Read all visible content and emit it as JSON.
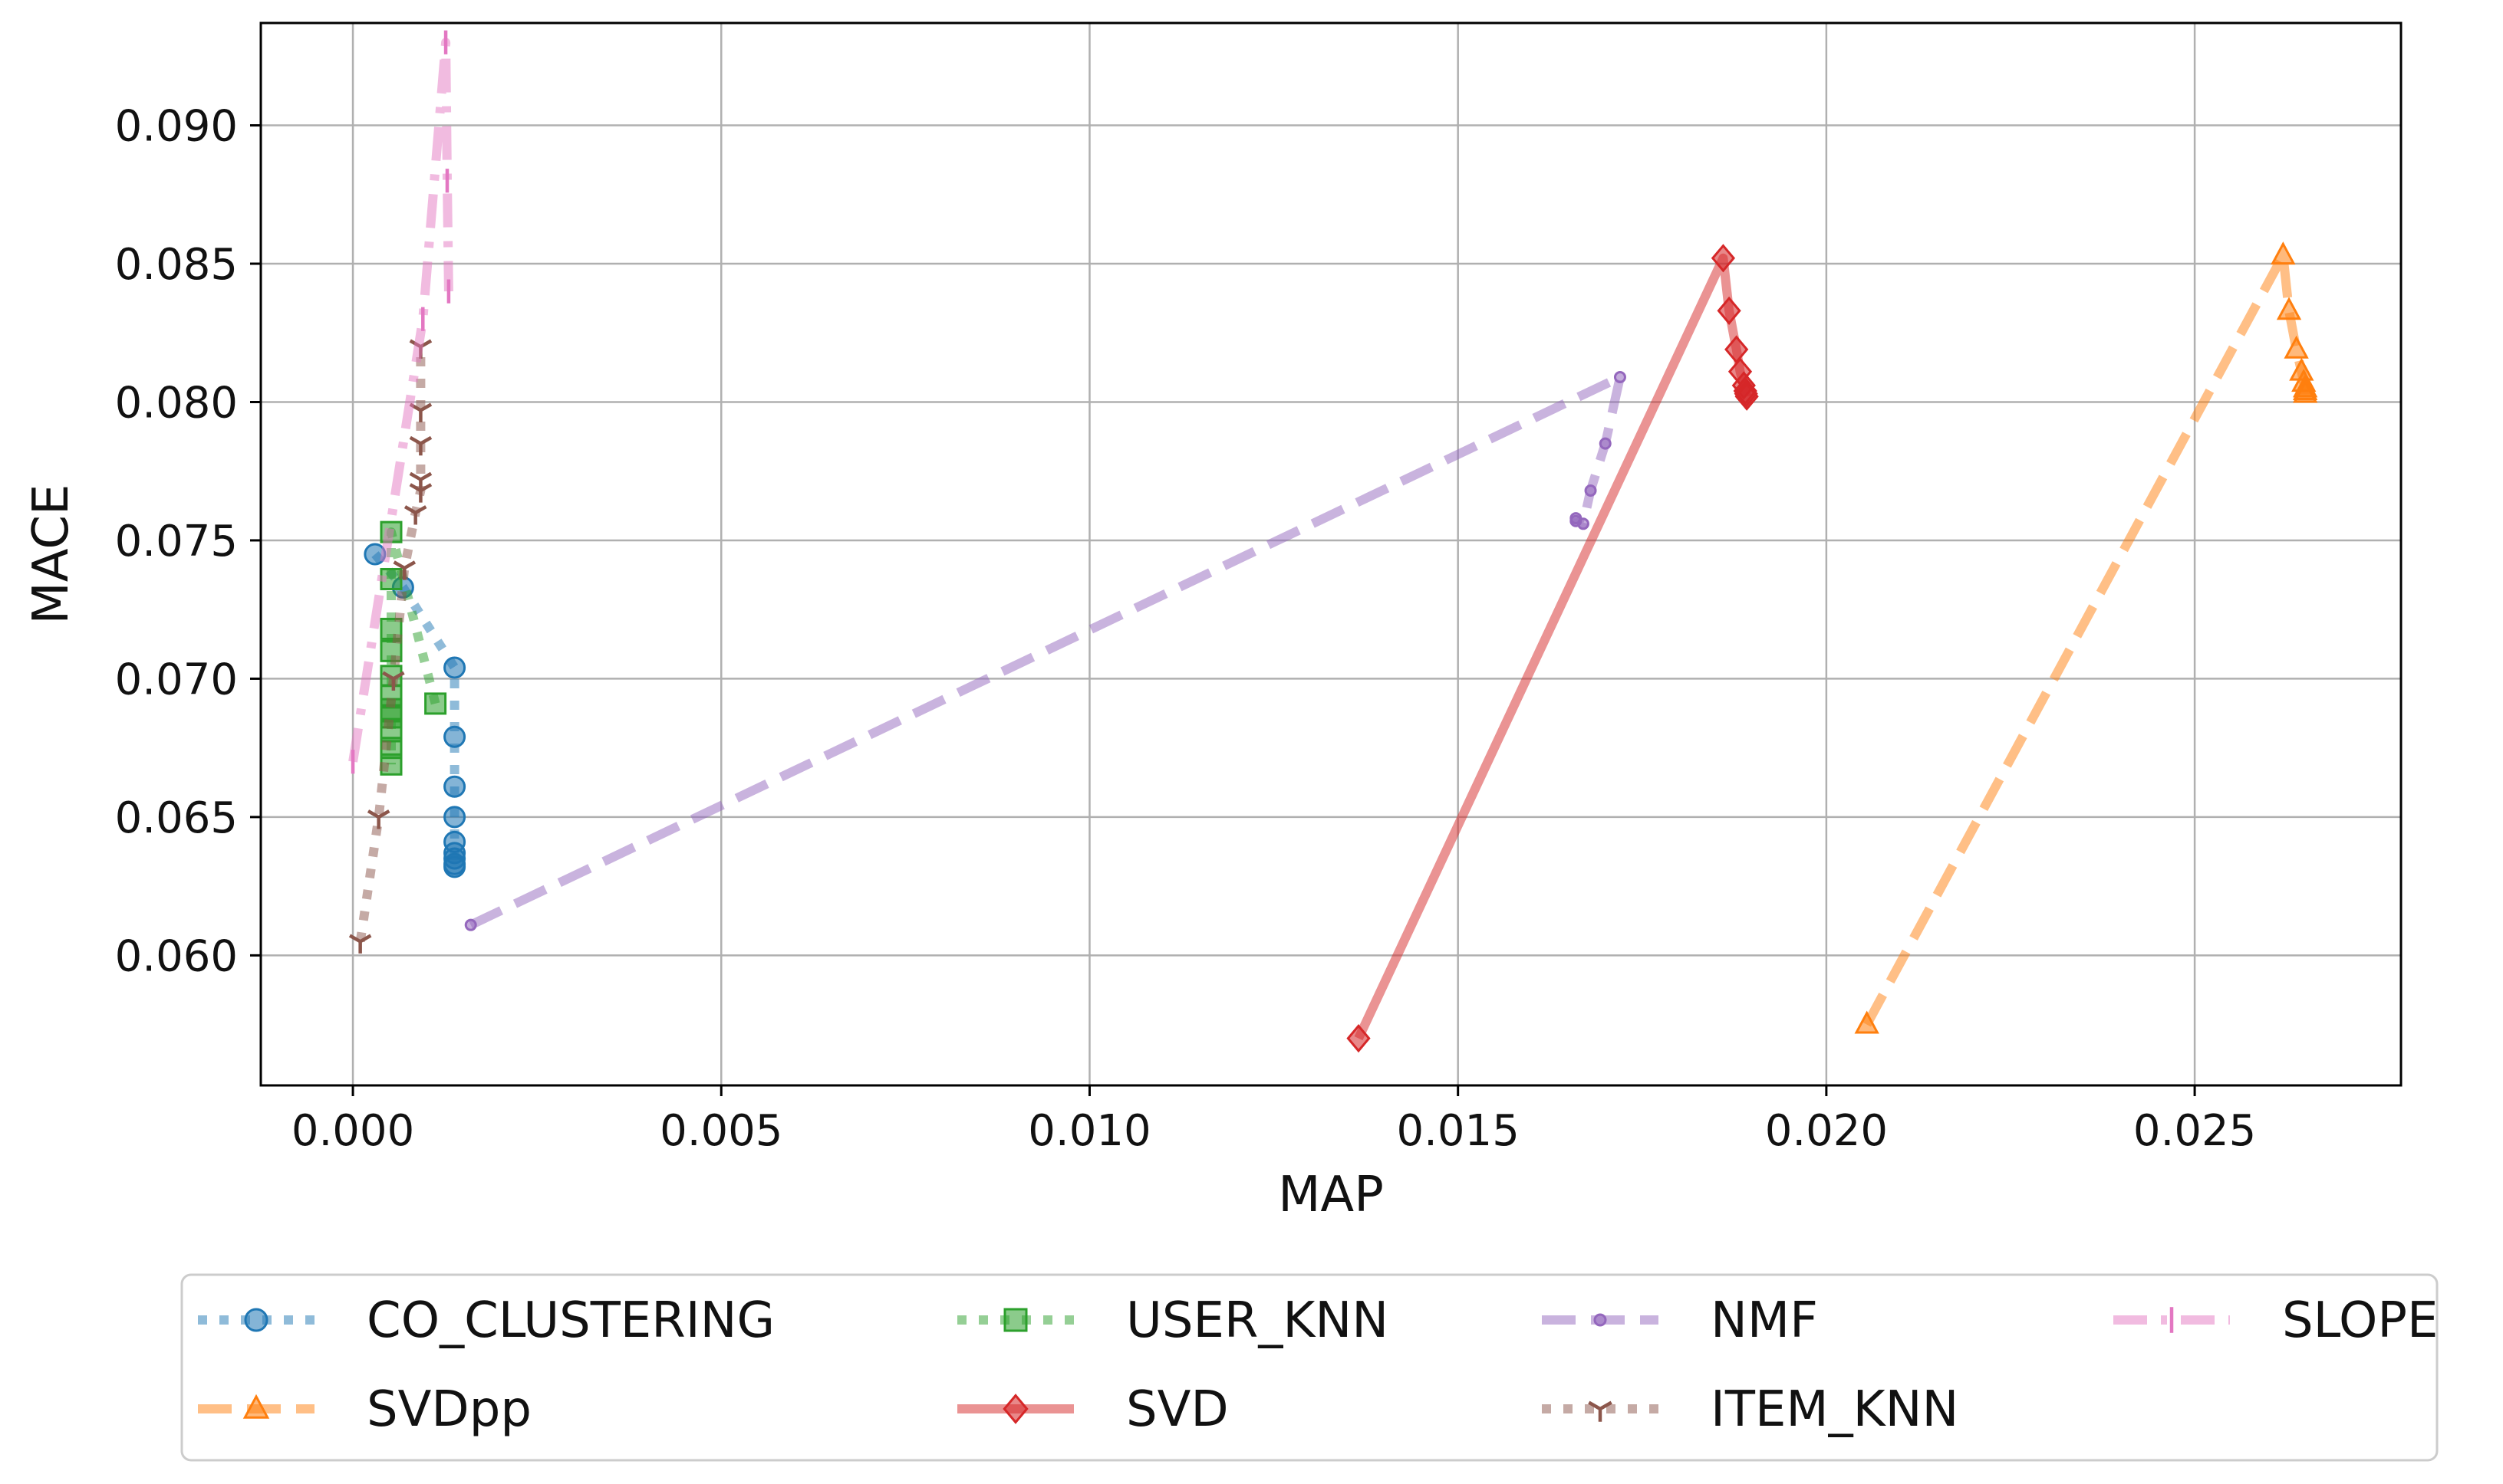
{
  "chart_data": {
    "type": "line",
    "title": "",
    "xlabel": "MAP",
    "ylabel": "MACE",
    "xlim": [
      -0.00125,
      0.0278
    ],
    "ylim": [
      0.0553,
      0.0937
    ],
    "xticks": [
      0.0,
      0.005,
      0.01,
      0.015,
      0.02,
      0.025
    ],
    "xtick_labels": [
      "0.000",
      "0.005",
      "0.010",
      "0.015",
      "0.020",
      "0.025"
    ],
    "yticks": [
      0.06,
      0.065,
      0.07,
      0.075,
      0.08,
      0.085,
      0.09
    ],
    "ytick_labels": [
      "0.060",
      "0.065",
      "0.070",
      "0.075",
      "0.080",
      "0.085",
      "0.090"
    ],
    "grid": true,
    "legend_position": "bottom",
    "series": [
      {
        "name": "CO_CLUSTERING",
        "color": "#1f77b4",
        "marker": "circle",
        "linestyle": "dotted",
        "x": [
          0.0003,
          0.00068,
          0.00138,
          0.00138,
          0.00138,
          0.00138,
          0.00138,
          0.00138,
          0.00138,
          0.00138,
          0.00138
        ],
        "y": [
          0.0745,
          0.0733,
          0.0704,
          0.0679,
          0.0661,
          0.065,
          0.0641,
          0.0637,
          0.0635,
          0.0633,
          0.0632
        ]
      },
      {
        "name": "SVDpp",
        "color": "#ff7f0e",
        "marker": "triangle",
        "linestyle": "dashed",
        "x": [
          0.02055,
          0.0262,
          0.02628,
          0.02638,
          0.02645,
          0.02648,
          0.0265,
          0.0265,
          0.0265
        ],
        "y": [
          0.0575,
          0.0853,
          0.0833,
          0.0819,
          0.0811,
          0.0807,
          0.0805,
          0.0804,
          0.0803
        ]
      },
      {
        "name": "USER_KNN",
        "color": "#2ca02c",
        "marker": "square",
        "linestyle": "dotted",
        "x": [
          0.00112,
          0.00052,
          0.00052,
          0.00052,
          0.00052,
          0.00052,
          0.00052,
          0.00052,
          0.00052,
          0.00052,
          0.00052,
          0.00052
        ],
        "y": [
          0.0691,
          0.0753,
          0.0736,
          0.0718,
          0.071,
          0.0701,
          0.0694,
          0.0689,
          0.0686,
          0.0681,
          0.0675,
          0.0669
        ]
      },
      {
        "name": "SVD",
        "color": "#d62728",
        "marker": "diamond",
        "linestyle": "solid",
        "x": [
          0.01365,
          0.0186,
          0.01868,
          0.01878,
          0.01883,
          0.01888,
          0.0189,
          0.01891,
          0.01892
        ],
        "y": [
          0.057,
          0.0852,
          0.0833,
          0.0819,
          0.0811,
          0.0806,
          0.0804,
          0.0803,
          0.0802
        ]
      },
      {
        "name": "NMF",
        "color": "#9467bd",
        "marker": "point",
        "linestyle": "dashed",
        "x": [
          0.0016,
          0.0172,
          0.017,
          0.0168,
          0.0167,
          0.0166,
          0.0166
        ],
        "y": [
          0.0611,
          0.0809,
          0.0785,
          0.0768,
          0.0756,
          0.0757,
          0.0758
        ]
      },
      {
        "name": "ITEM_KNN",
        "color": "#8c564b",
        "marker": "tri_down",
        "linestyle": "dotted",
        "x": [
          0.0001,
          0.00035,
          0.00055,
          0.0007,
          0.00085,
          0.00092,
          0.00092,
          0.00092,
          0.00092,
          0.00092
        ],
        "y": [
          0.0605,
          0.065,
          0.07,
          0.074,
          0.076,
          0.0768,
          0.0772,
          0.0785,
          0.0797,
          0.082
        ]
      },
      {
        "name": "SLOPE",
        "color": "#e377c2",
        "marker": "vline",
        "linestyle": "dashdot",
        "x": [
          0.0,
          0.00095,
          0.00126,
          0.00128,
          0.0013
        ],
        "y": [
          0.067,
          0.083,
          0.093,
          0.088,
          0.084
        ]
      }
    ]
  }
}
